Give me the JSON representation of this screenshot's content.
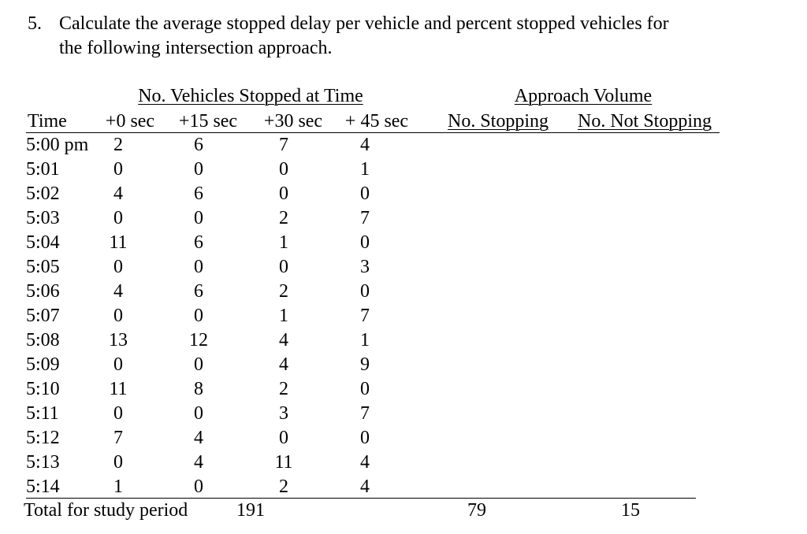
{
  "problem": {
    "number": "5.",
    "lines": [
      "Calculate the average stopped delay per vehicle and percent stopped vehicles for",
      "the following intersection approach."
    ]
  },
  "table": {
    "group_headers": [
      "No. Vehicles Stopped at Time",
      "Approach Volume"
    ],
    "columns": [
      "Time",
      "+0 sec",
      "+15 sec",
      "+30 sec",
      "+ 45 sec",
      "No. Stopping",
      "No. Not Stopping"
    ],
    "rows": [
      [
        "5:00 pm",
        2,
        6,
        7,
        4
      ],
      [
        "5:01",
        0,
        0,
        0,
        1
      ],
      [
        "5:02",
        4,
        6,
        0,
        0
      ],
      [
        "5:03",
        0,
        0,
        2,
        7
      ],
      [
        "5:04",
        11,
        6,
        1,
        0
      ],
      [
        "5:05",
        0,
        0,
        0,
        3
      ],
      [
        "5:06",
        4,
        6,
        2,
        0
      ],
      [
        "5:07",
        0,
        0,
        1,
        7
      ],
      [
        "5:08",
        13,
        12,
        4,
        1
      ],
      [
        "5:09",
        0,
        0,
        4,
        9
      ],
      [
        "5:10",
        11,
        8,
        2,
        0
      ],
      [
        "5:11",
        0,
        0,
        3,
        7
      ],
      [
        "5:12",
        7,
        4,
        0,
        0
      ],
      [
        "5:13",
        0,
        4,
        11,
        4
      ],
      [
        "5:14",
        1,
        0,
        2,
        4
      ]
    ],
    "total": {
      "label": "Total for study period",
      "stopped": 191,
      "no_stopping": 79,
      "no_not_stopping": 15
    }
  }
}
